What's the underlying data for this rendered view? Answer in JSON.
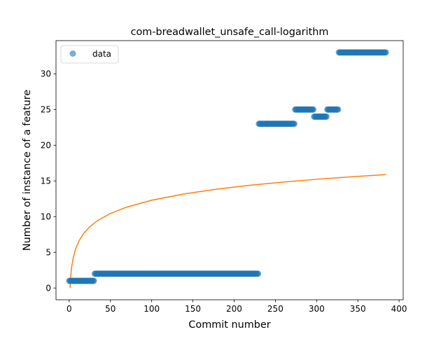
{
  "chart_data": {
    "type": "scatter",
    "title": "com-breadwallet_unsafe_call-logarithm",
    "xlabel": "Commit number",
    "ylabel": "Number of instance of a feature",
    "xlim": [
      -16,
      405
    ],
    "ylim": [
      -1.65,
      34.65
    ],
    "xticks": [
      0,
      50,
      100,
      150,
      200,
      250,
      300,
      350,
      400
    ],
    "yticks": [
      0,
      5,
      10,
      15,
      20,
      25,
      30
    ],
    "grid": false,
    "legend": {
      "placement": "top-left",
      "entries": [
        "data"
      ]
    },
    "colors": {
      "points": "#1f77b4",
      "fit": "#ff7f0e"
    },
    "series": [
      {
        "name": "data",
        "kind": "points",
        "segments": [
          {
            "x_start": 0,
            "x_end": 30,
            "y": 1
          },
          {
            "x_start": 31,
            "x_end": 229,
            "y": 2
          },
          {
            "x_start": 230,
            "x_end": 273,
            "y": 23
          },
          {
            "x_start": 274,
            "x_end": 296,
            "y": 25
          },
          {
            "x_start": 297,
            "x_end": 312,
            "y": 24
          },
          {
            "x_start": 313,
            "x_end": 326,
            "y": 25
          },
          {
            "x_start": 327,
            "x_end": 384,
            "y": 33
          }
        ]
      },
      {
        "kind": "line",
        "model": "logarithm",
        "points": [
          [
            1,
            0.0
          ],
          [
            2,
            1.85
          ],
          [
            3,
            2.94
          ],
          [
            5,
            4.3
          ],
          [
            8,
            5.55
          ],
          [
            12,
            6.63
          ],
          [
            18,
            7.71
          ],
          [
            25,
            8.59
          ],
          [
            35,
            9.49
          ],
          [
            50,
            10.44
          ],
          [
            70,
            11.34
          ],
          [
            100,
            12.29
          ],
          [
            140,
            13.19
          ],
          [
            180,
            13.86
          ],
          [
            220,
            14.4
          ],
          [
            260,
            14.84
          ],
          [
            300,
            15.23
          ],
          [
            340,
            15.56
          ],
          [
            384,
            15.89
          ]
        ]
      }
    ]
  }
}
